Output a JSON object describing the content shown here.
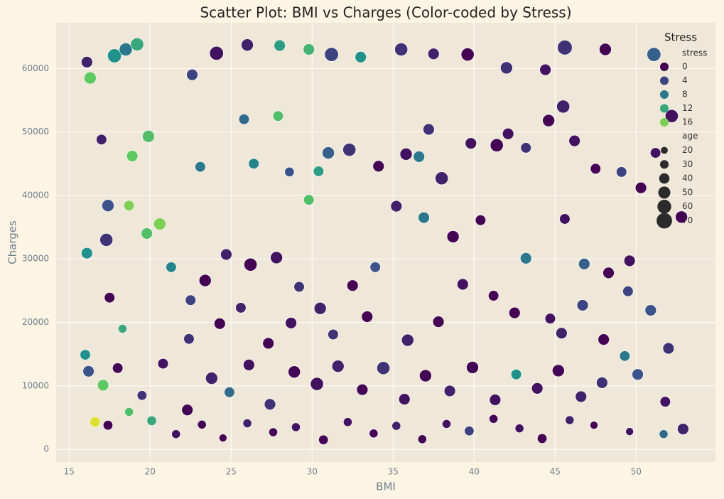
{
  "chart_data": {
    "type": "scatter",
    "title": "Scatter Plot: BMI vs Charges (Color-coded by Stress)",
    "x_label": "BMI",
    "y_label": "Charges",
    "xlim": [
      14.2,
      54.9
    ],
    "ylim": [
      -2000,
      67200
    ],
    "xticks": [
      15,
      20,
      25,
      30,
      35,
      40,
      45,
      50
    ],
    "yticks": [
      0,
      10000,
      20000,
      30000,
      40000,
      50000,
      60000
    ],
    "grid": true,
    "colormap": [
      "#440154",
      "#3b528b",
      "#21918c",
      "#5ec962",
      "#fde725"
    ],
    "color_domain": [
      0,
      20
    ],
    "legend": {
      "title": "Stress",
      "color_title": "stress",
      "color_values": [
        0,
        4,
        8,
        12,
        16
      ],
      "size_title": "age",
      "size_values": [
        20,
        30,
        40,
        50,
        60,
        70
      ],
      "position": "upper right"
    },
    "x": [
      16.1,
      16.3,
      17.8,
      18.5,
      19.2,
      22.6,
      24.1,
      26.0,
      28.0,
      29.8,
      31.2,
      33.0,
      35.5,
      37.5,
      39.6,
      42.0,
      44.4,
      45.6,
      48.1,
      51.1,
      17.0,
      19.9,
      18.9,
      17.4,
      18.7,
      19.8,
      20.6,
      16.1,
      17.3,
      17.5,
      16.0,
      16.6,
      17.1,
      16.2,
      18.3,
      21.3,
      22.5,
      23.4,
      24.7,
      26.2,
      27.8,
      29.2,
      30.5,
      32.5,
      33.9,
      25.8,
      27.9,
      28.6,
      26.4,
      29.8,
      30.4,
      31.0,
      32.3,
      34.1,
      35.8,
      36.6,
      37.2,
      38.0,
      39.8,
      41.4,
      42.1,
      43.2,
      44.6,
      45.5,
      46.2,
      47.5,
      49.1,
      50.3,
      51.2,
      52.2,
      35.2,
      36.9,
      38.7,
      40.4,
      43.2,
      45.6,
      46.8,
      48.3,
      49.6,
      52.8,
      39.3,
      41.2,
      42.5,
      44.7,
      45.4,
      46.7,
      48.0,
      49.5,
      50.9,
      52.0,
      18.0,
      19.5,
      20.8,
      22.3,
      23.8,
      24.9,
      26.1,
      27.4,
      28.9,
      30.3,
      31.6,
      33.1,
      34.4,
      35.7,
      37.0,
      38.5,
      39.9,
      41.3,
      42.6,
      43.9,
      45.2,
      46.6,
      47.9,
      49.3,
      50.1,
      51.8,
      52.9,
      17.4,
      18.7,
      20.1,
      21.6,
      23.2,
      24.5,
      26.0,
      27.6,
      29.0,
      30.7,
      32.2,
      33.8,
      35.2,
      36.8,
      38.3,
      39.7,
      41.2,
      42.8,
      44.2,
      45.9,
      47.4,
      49.6,
      51.7,
      22.4,
      24.3,
      25.6,
      27.3,
      28.7,
      31.3,
      33.4,
      35.9,
      37.8,
      23.1
    ],
    "values": [
      61000,
      58500,
      62000,
      63000,
      63800,
      59000,
      62400,
      63700,
      63600,
      63000,
      62200,
      61800,
      63000,
      62300,
      62200,
      60100,
      59800,
      63300,
      63000,
      62200,
      48800,
      49300,
      46200,
      38400,
      38400,
      34000,
      35500,
      30900,
      33000,
      23900,
      14900,
      4300,
      10100,
      12300,
      19000,
      28700,
      23500,
      26600,
      30700,
      29100,
      30200,
      25600,
      22200,
      25800,
      28700,
      52000,
      52500,
      43700,
      45000,
      39300,
      43800,
      46700,
      47200,
      44600,
      46500,
      46100,
      50400,
      42700,
      48200,
      47900,
      49700,
      47500,
      51800,
      54000,
      48600,
      44200,
      43700,
      41200,
      46700,
      52500,
      38300,
      36500,
      33500,
      36100,
      30100,
      36300,
      29200,
      27800,
      29700,
      36600,
      26000,
      24200,
      21500,
      20600,
      18300,
      22700,
      17300,
      24900,
      21900,
      15900,
      12800,
      8500,
      13500,
      6200,
      11200,
      9000,
      13300,
      7100,
      12200,
      10300,
      13100,
      9400,
      12800,
      7900,
      11600,
      9200,
      12900,
      7800,
      11800,
      9600,
      12400,
      8300,
      10500,
      14700,
      11800,
      7500,
      3200,
      3800,
      5900,
      4500,
      2400,
      3900,
      1800,
      4100,
      2700,
      3500,
      1500,
      4300,
      2500,
      3700,
      1600,
      4000,
      2900,
      4800,
      3300,
      1700,
      4600,
      3800,
      2800,
      2400,
      17400,
      19800,
      22300,
      16700,
      19900,
      18100,
      20900,
      17200,
      20100,
      44500
    ],
    "sizes": [
      45,
      50,
      60,
      55,
      55,
      45,
      60,
      50,
      45,
      45,
      60,
      45,
      55,
      45,
      55,
      50,
      45,
      65,
      50,
      60,
      40,
      50,
      45,
      50,
      40,
      45,
      50,
      45,
      55,
      40,
      40,
      40,
      45,
      45,
      30,
      40,
      40,
      50,
      45,
      55,
      50,
      40,
      50,
      45,
      40,
      40,
      40,
      35,
      40,
      40,
      40,
      50,
      55,
      45,
      50,
      45,
      45,
      55,
      45,
      55,
      45,
      40,
      50,
      55,
      45,
      40,
      40,
      45,
      40,
      55,
      45,
      45,
      50,
      40,
      45,
      40,
      45,
      45,
      45,
      50,
      45,
      40,
      45,
      40,
      45,
      45,
      45,
      40,
      45,
      45,
      40,
      35,
      40,
      45,
      50,
      40,
      45,
      45,
      50,
      55,
      50,
      45,
      55,
      45,
      50,
      45,
      50,
      45,
      40,
      45,
      50,
      45,
      45,
      40,
      45,
      40,
      45,
      35,
      30,
      35,
      30,
      30,
      25,
      30,
      30,
      30,
      35,
      30,
      30,
      30,
      30,
      30,
      35,
      30,
      30,
      35,
      30,
      25,
      25,
      30,
      40,
      45,
      40,
      45,
      45,
      40,
      45,
      50,
      45,
      40
    ],
    "stress": [
      2,
      15,
      10,
      8,
      12,
      4,
      1,
      2,
      11,
      13,
      4,
      10,
      3,
      2,
      0,
      3,
      1,
      3,
      0,
      6,
      2,
      14,
      15,
      5,
      16,
      14,
      16,
      10,
      3,
      0,
      10,
      19,
      15,
      5,
      12,
      9,
      4,
      0,
      2,
      0,
      1,
      3,
      2,
      0,
      5,
      7,
      14,
      5,
      9,
      14,
      11,
      6,
      3,
      0,
      1,
      8,
      3,
      2,
      1,
      0,
      1,
      3,
      0,
      2,
      1,
      0,
      4,
      0,
      1,
      1,
      2,
      8,
      0,
      0,
      8,
      1,
      6,
      0,
      1,
      0,
      1,
      0,
      0,
      1,
      2,
      4,
      0,
      4,
      5,
      3,
      0,
      3,
      1,
      0,
      2,
      7,
      1,
      3,
      0,
      1,
      2,
      0,
      3,
      1,
      0,
      2,
      0,
      1,
      10,
      1,
      0,
      2,
      3,
      8,
      5,
      1,
      2,
      0,
      14,
      12,
      1,
      0,
      0,
      2,
      0,
      1,
      0,
      1,
      0,
      2,
      0,
      1,
      4,
      0,
      1,
      0,
      2,
      0,
      1,
      7,
      3,
      0,
      2,
      0,
      1,
      3,
      0,
      2,
      0,
      8
    ]
  }
}
